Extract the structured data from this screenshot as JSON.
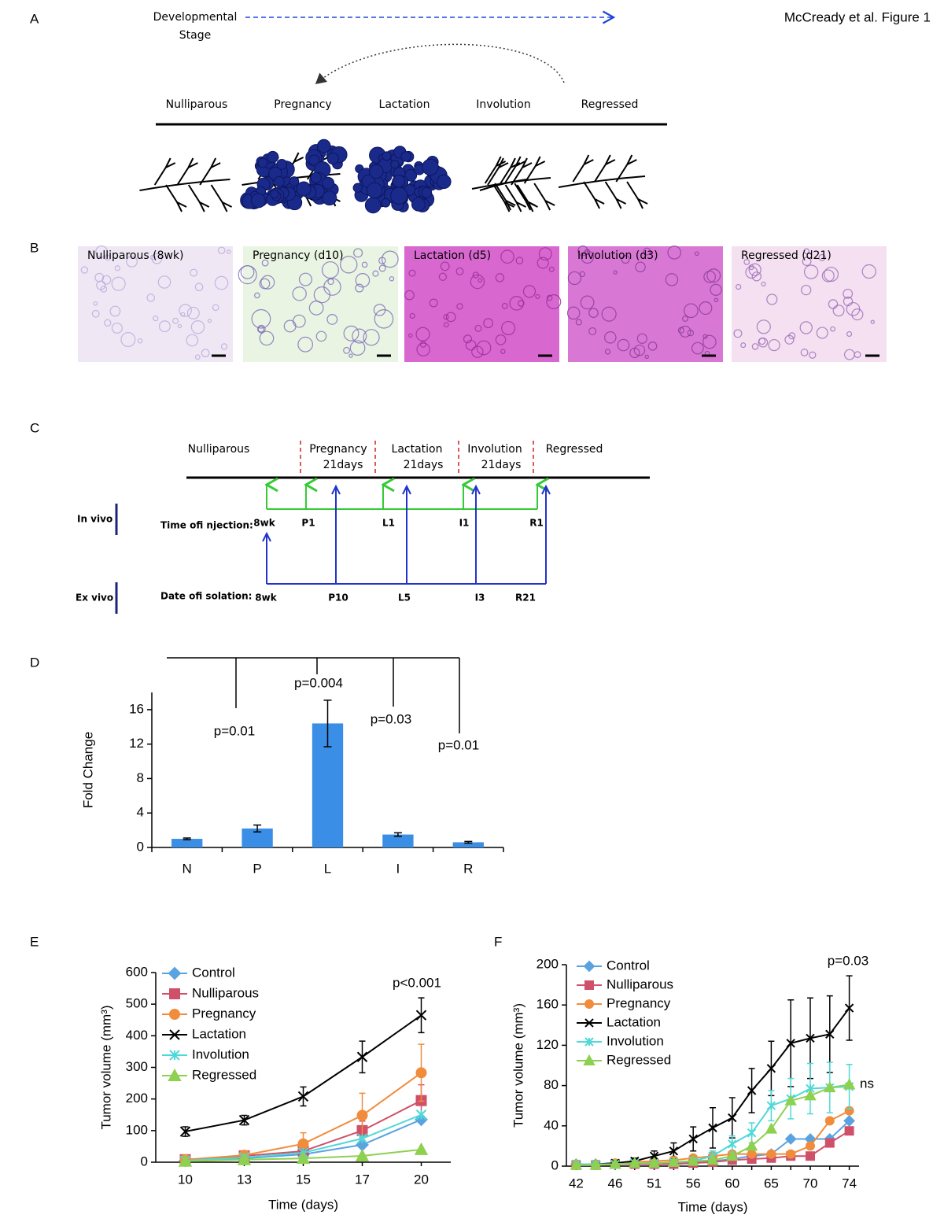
{
  "header": {
    "caption": "McCready et al. Figure 1"
  },
  "panels": [
    "A",
    "B",
    "C",
    "D",
    "E",
    "F"
  ],
  "stage_diagram": {
    "axis_label": [
      "Developmental",
      "Stage"
    ],
    "stages": [
      "Nulliparous",
      "Pregnancy",
      "Lactation",
      "Involution",
      "Regressed"
    ]
  },
  "histology": {
    "labels": [
      "Nulliparous (8wk)",
      "Pregnancy (d10)",
      "Lactation (d5)",
      "Involution (d3)",
      "Regressed (d21)"
    ]
  },
  "timeline": {
    "stages": [
      "Nulliparous",
      "Pregnancy",
      "Lactation",
      "Involution",
      "Regressed"
    ],
    "durations": [
      "21days",
      "21days",
      "21days"
    ],
    "in_vivo": {
      "label": "In vivo",
      "caption": "Time ofi njection:",
      "points": [
        "8wk",
        "P1",
        "L1",
        "I1",
        "R1"
      ]
    },
    "ex_vivo": {
      "label": "Ex vivo",
      "caption": "Date ofi solation:",
      "points": [
        "8wk",
        "P10",
        "L5",
        "I3",
        "R21"
      ]
    }
  },
  "chart_data": [
    {
      "type": "bar",
      "categories": [
        "N",
        "P",
        "L",
        "I",
        "R"
      ],
      "values": [
        1.0,
        2.2,
        14.4,
        1.5,
        0.6
      ],
      "errors": [
        0.1,
        0.4,
        2.7,
        0.2,
        0.1
      ],
      "color": "#3a8ee6",
      "ylabel": "Fold Change",
      "ylim": [
        0,
        18
      ],
      "yticks": [
        0,
        4,
        8,
        12,
        16
      ],
      "annotations": [
        "p=0.01",
        "p=0.004",
        "p=0.03",
        "p=0.01"
      ]
    },
    {
      "type": "line",
      "categories": [
        "10",
        "13",
        "15",
        "17",
        "20"
      ],
      "xlabel": "Time (days)",
      "ylabel": "Tumor volume (mm³)",
      "ylim": [
        0,
        600
      ],
      "yticks": [
        0,
        100,
        200,
        300,
        400,
        500,
        600
      ],
      "annotations": [
        "p<0.001"
      ],
      "series": [
        {
          "name": "Control",
          "color": "#5ba3e0",
          "marker": "diamond",
          "values": [
            5,
            12,
            25,
            55,
            135
          ]
        },
        {
          "name": "Nulliparous",
          "color": "#d0506a",
          "marker": "square",
          "values": [
            8,
            20,
            35,
            100,
            195
          ],
          "errors": [
            3,
            5,
            10,
            30,
            50
          ]
        },
        {
          "name": "Pregnancy",
          "color": "#f08c3c",
          "marker": "circle",
          "values": [
            8,
            22,
            58,
            148,
            283
          ],
          "errors": [
            5,
            5,
            35,
            70,
            90
          ]
        },
        {
          "name": "Lactation",
          "color": "#000000",
          "marker": "x",
          "values": [
            97,
            133,
            208,
            333,
            465
          ],
          "errors": [
            15,
            15,
            30,
            50,
            55
          ]
        },
        {
          "name": "Involution",
          "color": "#4fd8d8",
          "marker": "asterisk",
          "values": [
            5,
            15,
            30,
            75,
            150
          ]
        },
        {
          "name": "Regressed",
          "color": "#8ed050",
          "marker": "triangle",
          "values": [
            3,
            8,
            12,
            20,
            40
          ]
        }
      ]
    },
    {
      "type": "line",
      "categories": [
        "42",
        null,
        "46",
        null,
        "51",
        null,
        "56",
        null,
        "60",
        null,
        "65",
        null,
        "70",
        null,
        "74"
      ],
      "xlabel": "Time (days)",
      "ylabel": "Tumor volume (mm³)",
      "ylim": [
        0,
        200
      ],
      "yticks": [
        0,
        40,
        80,
        120,
        160,
        200
      ],
      "annotations": [
        "p=0.03",
        "ns"
      ],
      "series": [
        {
          "name": "Control",
          "color": "#5ba3e0",
          "marker": "diamond",
          "values": [
            2,
            2,
            2,
            3,
            3,
            3,
            4,
            5,
            7,
            10,
            12,
            27,
            27,
            27,
            45
          ]
        },
        {
          "name": "Nulliparous",
          "color": "#d0506a",
          "marker": "square",
          "values": [
            1,
            1,
            2,
            2,
            2,
            2,
            3,
            4,
            6,
            7,
            8,
            10,
            10,
            23,
            35
          ]
        },
        {
          "name": "Pregnancy",
          "color": "#f08c3c",
          "marker": "circle",
          "values": [
            2,
            2,
            3,
            4,
            5,
            6,
            8,
            10,
            12,
            12,
            12,
            12,
            20,
            45,
            55
          ]
        },
        {
          "name": "Lactation",
          "color": "#000000",
          "marker": "x",
          "values": [
            2,
            2,
            3,
            5,
            10,
            15,
            27,
            38,
            48,
            75,
            97,
            122,
            127,
            131,
            157
          ],
          "errors": [
            1,
            1,
            2,
            3,
            5,
            8,
            12,
            20,
            20,
            22,
            27,
            43,
            40,
            38,
            32
          ]
        },
        {
          "name": "Involution",
          "color": "#4fd8d8",
          "marker": "asterisk",
          "values": [
            2,
            2,
            2,
            3,
            3,
            4,
            5,
            10,
            22,
            33,
            60,
            67,
            77,
            78,
            79
          ],
          "errors": [
            1,
            1,
            1,
            2,
            2,
            2,
            3,
            5,
            8,
            10,
            15,
            20,
            25,
            25,
            22
          ]
        },
        {
          "name": "Regressed",
          "color": "#8ed050",
          "marker": "triangle",
          "values": [
            1,
            1,
            2,
            3,
            3,
            4,
            5,
            6,
            10,
            20,
            37,
            65,
            70,
            78,
            81
          ]
        }
      ]
    }
  ]
}
